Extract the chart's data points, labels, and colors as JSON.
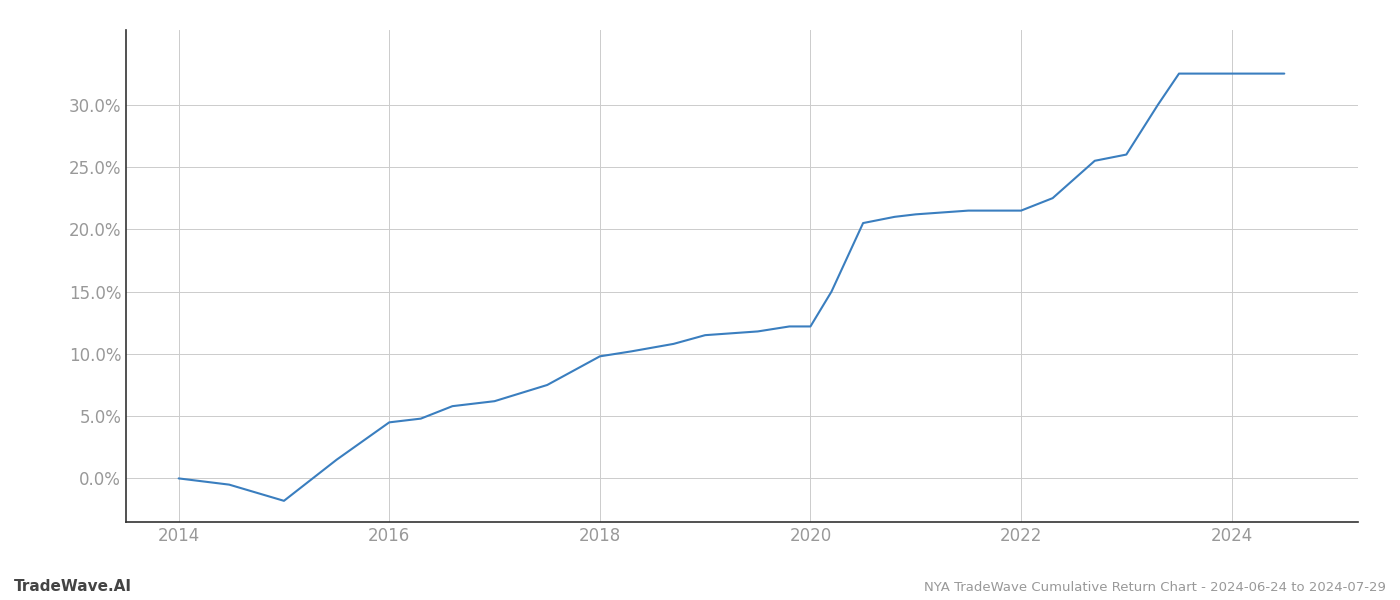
{
  "title": "NYA TradeWave Cumulative Return Chart - 2024-06-24 to 2024-07-29",
  "watermark": "TradeWave.AI",
  "line_color": "#3a7ebf",
  "background_color": "#ffffff",
  "grid_color": "#cccccc",
  "years": [
    2014.0,
    2014.48,
    2015.0,
    2015.5,
    2016.0,
    2016.3,
    2016.6,
    2017.0,
    2017.5,
    2018.0,
    2018.3,
    2018.7,
    2019.0,
    2019.5,
    2019.8,
    2020.0,
    2020.2,
    2020.5,
    2020.8,
    2021.0,
    2021.5,
    2022.0,
    2022.3,
    2022.7,
    2023.0,
    2023.3,
    2023.5,
    2024.0,
    2024.5
  ],
  "values": [
    0.0,
    -0.5,
    -1.8,
    1.5,
    4.5,
    4.8,
    5.8,
    6.2,
    7.5,
    9.8,
    10.2,
    10.8,
    11.5,
    11.8,
    12.2,
    12.2,
    15.0,
    20.5,
    21.0,
    21.2,
    21.5,
    21.5,
    22.5,
    25.5,
    26.0,
    30.0,
    32.5,
    32.5,
    32.5
  ],
  "xlim": [
    2013.5,
    2025.2
  ],
  "ylim": [
    -3.5,
    36
  ],
  "yticks": [
    0.0,
    5.0,
    10.0,
    15.0,
    20.0,
    25.0,
    30.0
  ],
  "xticks": [
    2014,
    2016,
    2018,
    2020,
    2022,
    2024
  ],
  "tick_color": "#999999",
  "spine_color": "#333333",
  "figsize": [
    14.0,
    6.0
  ],
  "dpi": 100
}
